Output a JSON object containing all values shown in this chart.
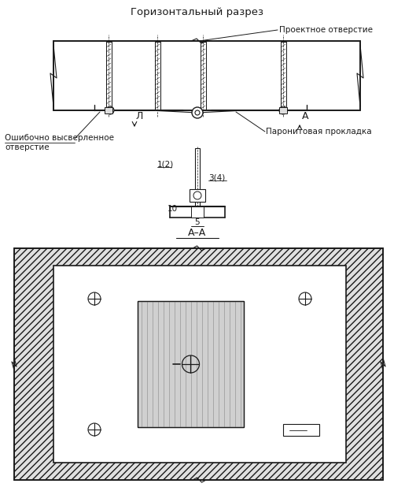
{
  "title": "Горизонтальный разрез",
  "label_project": "Проектное отверстие",
  "label_error": "Ошибочно высверленное\nотверстие",
  "label_gasket": "Паронитовая прокладка",
  "label_aa": "А–А",
  "bg_color": "#ffffff",
  "line_color": "#1a1a1a",
  "fig_width": 5.02,
  "fig_height": 6.23,
  "dpi": 100
}
